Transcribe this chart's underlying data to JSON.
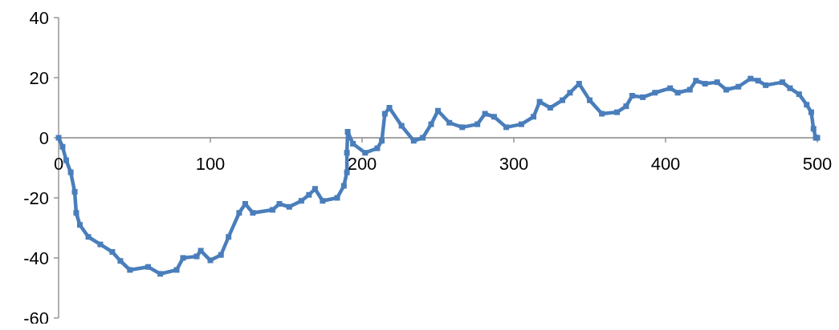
{
  "chart_data": {
    "type": "line",
    "x": [
      0,
      2.6,
      5,
      8,
      10.6,
      11.6,
      14,
      19.6,
      27.5,
      35.4,
      40.7,
      47,
      59,
      67,
      77.8,
      82,
      91,
      93.7,
      100,
      107,
      112,
      119,
      123,
      128,
      141,
      145.5,
      152,
      160,
      165,
      169,
      174,
      183.6,
      188,
      190,
      190,
      190.5,
      194,
      202,
      210,
      213,
      215,
      218,
      226,
      234,
      240,
      245.5,
      250,
      257.5,
      266,
      276,
      281,
      287,
      295,
      305,
      313,
      317,
      324,
      332,
      337,
      343,
      350,
      358,
      368,
      374,
      378,
      385,
      393,
      403,
      408,
      416,
      420,
      426,
      434,
      440,
      448,
      456,
      461,
      466,
      477,
      482,
      488,
      493,
      496,
      497.5,
      499,
      500
    ],
    "series": [
      {
        "color": "#4a7ebb",
        "values": [
          0,
          -3,
          -7.5,
          -11.5,
          -18,
          -25,
          -29,
          -33,
          -35.5,
          -38,
          -41,
          -44,
          -43,
          -45.3,
          -44,
          -40,
          -39.5,
          -37.6,
          -40.8,
          -39,
          -33,
          -25,
          -22,
          -25,
          -24,
          -22,
          -23,
          -21,
          -19,
          -17,
          -21,
          -20,
          -16,
          -11.5,
          -5,
          2,
          -2,
          -5,
          -3.5,
          -1,
          8,
          10,
          4,
          -1,
          0,
          4.5,
          9,
          5,
          3.5,
          4.5,
          8,
          7,
          3.5,
          4.5,
          7,
          12,
          10,
          12.5,
          15,
          18,
          12.5,
          8,
          8.5,
          10.5,
          14,
          13.5,
          15,
          16.5,
          15,
          16,
          19,
          18,
          18.5,
          16,
          17,
          19.7,
          19,
          17.5,
          18.5,
          16.5,
          14.5,
          11,
          8.5,
          3,
          0,
          0
        ]
      }
    ],
    "xlim": [
      0,
      500
    ],
    "xticks": [
      0,
      100,
      200,
      300,
      400,
      500
    ],
    "ylim": [
      -60,
      40
    ],
    "yticks": [
      -60,
      -40,
      -20,
      0,
      20,
      40
    ],
    "grid": false,
    "marker": "square",
    "line_style": "solid"
  }
}
